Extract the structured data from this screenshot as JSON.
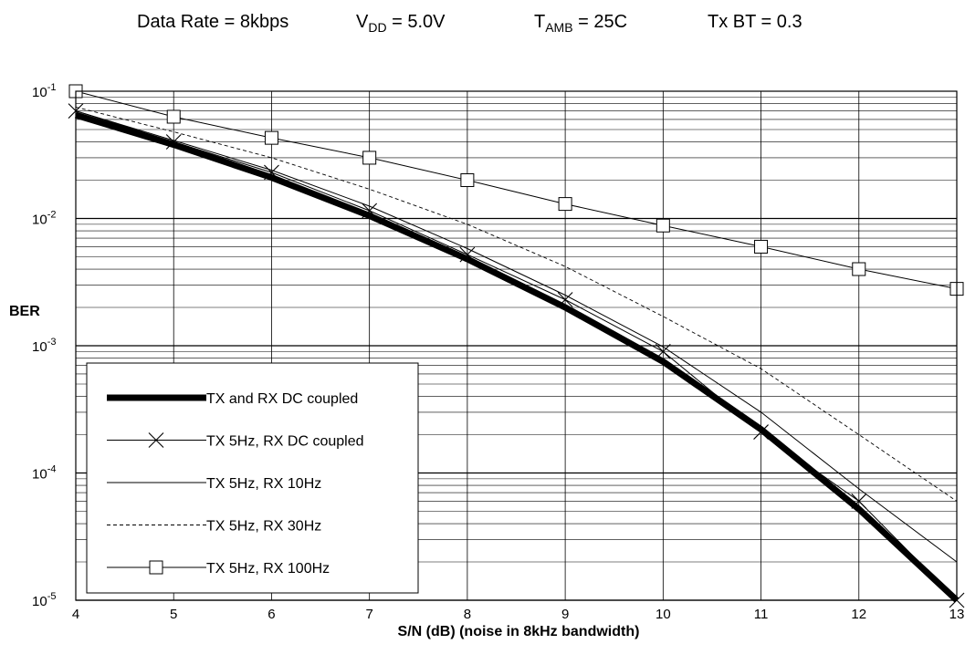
{
  "chart_data": {
    "type": "line",
    "title_conditions": [
      {
        "main": "Data Rate = 8kbps",
        "sub": "",
        "tail": ""
      },
      {
        "main": "V",
        "sub": "DD",
        "tail": " = 5.0V"
      },
      {
        "main": "T",
        "sub": "AMB",
        "tail": " = 25C"
      },
      {
        "main": "Tx BT = 0.3",
        "sub": "",
        "tail": ""
      }
    ],
    "xlabel": "S/N (dB) (noise in 8kHz bandwidth)",
    "ylabel": "BER",
    "xlim": [
      4,
      13
    ],
    "ylim": [
      1e-05,
      0.1
    ],
    "yscale": "log",
    "grid": true,
    "x_ticks": [
      "4",
      "5",
      "6",
      "7",
      "8",
      "9",
      "10",
      "11",
      "12",
      "13"
    ],
    "y_ticks": [
      {
        "base": "10",
        "exp": "-1"
      },
      {
        "base": "10",
        "exp": "-2"
      },
      {
        "base": "10",
        "exp": "-3"
      },
      {
        "base": "10",
        "exp": "-4"
      },
      {
        "base": "10",
        "exp": "-5"
      }
    ],
    "legend_position": "bottom-left",
    "series": [
      {
        "name": "TX and RX DC coupled",
        "style": "thick",
        "marker": "none",
        "x": [
          4,
          5,
          6,
          7,
          8,
          9,
          10,
          11,
          12,
          13
        ],
        "y": [
          0.065,
          0.038,
          0.021,
          0.0105,
          0.0048,
          0.002,
          0.00075,
          0.00022,
          5.2e-05,
          1e-05
        ]
      },
      {
        "name": "TX 5Hz, RX DC coupled",
        "style": "thin",
        "marker": "x",
        "x": [
          4,
          5,
          6,
          7,
          8,
          9,
          10,
          11,
          12,
          13
        ],
        "y": [
          0.07,
          0.04,
          0.023,
          0.0115,
          0.0052,
          0.0023,
          0.0009,
          0.00021,
          6e-05,
          1e-05
        ]
      },
      {
        "name": "TX 5Hz, RX 10Hz",
        "style": "thin",
        "marker": "none",
        "x": [
          4,
          5,
          6,
          7,
          8,
          9,
          10,
          11,
          12,
          13
        ],
        "y": [
          0.07,
          0.041,
          0.024,
          0.0125,
          0.0058,
          0.0025,
          0.00098,
          0.0003,
          7.5e-05,
          2e-05
        ]
      },
      {
        "name": "TX 5Hz, RX 30Hz",
        "style": "dashed",
        "marker": "none",
        "x": [
          4,
          5,
          6,
          7,
          8,
          9,
          10,
          11,
          12,
          13
        ],
        "y": [
          0.075,
          0.048,
          0.03,
          0.017,
          0.009,
          0.0042,
          0.0017,
          0.00066,
          0.0002,
          6e-05
        ]
      },
      {
        "name": "TX 5Hz, RX 100Hz",
        "style": "thin",
        "marker": "square",
        "x": [
          4,
          5,
          6,
          7,
          8,
          9,
          10,
          11,
          12,
          13
        ],
        "y": [
          0.1,
          0.063,
          0.043,
          0.03,
          0.02,
          0.013,
          0.0088,
          0.006,
          0.004,
          0.0028
        ]
      }
    ]
  }
}
